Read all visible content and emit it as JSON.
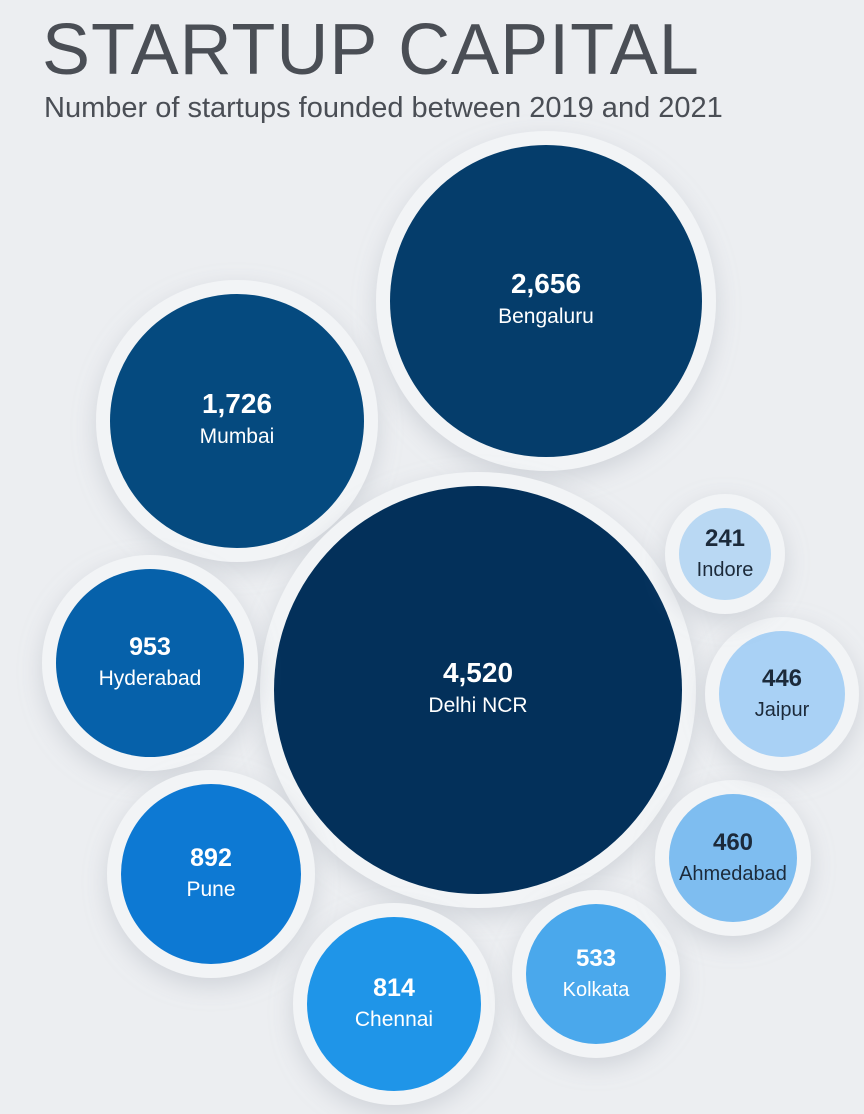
{
  "header": {
    "title": "STARTUP CAPITAL",
    "subtitle": "Number of startups founded between 2019 and 2021"
  },
  "chart_data": {
    "type": "bubble",
    "title": "STARTUP CAPITAL",
    "subtitle": "Number of startups founded between 2019 and 2021",
    "items": [
      {
        "city": "Bengaluru",
        "label": "2,656",
        "value": 2656,
        "color": "#053d6b",
        "text": "#ffffff"
      },
      {
        "city": "Mumbai",
        "label": "1,726",
        "value": 1726,
        "color": "#054a7f",
        "text": "#ffffff"
      },
      {
        "city": "Delhi NCR",
        "label": "4,520",
        "value": 4520,
        "color": "#03305a",
        "text": "#ffffff"
      },
      {
        "city": "Hyderabad",
        "label": "953",
        "value": 953,
        "color": "#0661aa",
        "text": "#ffffff"
      },
      {
        "city": "Pune",
        "label": "892",
        "value": 892,
        "color": "#0d79d3",
        "text": "#ffffff"
      },
      {
        "city": "Chennai",
        "label": "814",
        "value": 814,
        "color": "#1f95e8",
        "text": "#ffffff"
      },
      {
        "city": "Kolkata",
        "label": "533",
        "value": 533,
        "color": "#4aa8ec",
        "text": "#ffffff"
      },
      {
        "city": "Ahmedabad",
        "label": "460",
        "value": 460,
        "color": "#7ebdf0",
        "text": "#1c2a3a"
      },
      {
        "city": "Jaipur",
        "label": "446",
        "value": 446,
        "color": "#a9d1f5",
        "text": "#1c2a3a"
      },
      {
        "city": "Indore",
        "label": "241",
        "value": 241,
        "color": "#b9d8f3",
        "text": "#1c2a3a"
      }
    ]
  }
}
